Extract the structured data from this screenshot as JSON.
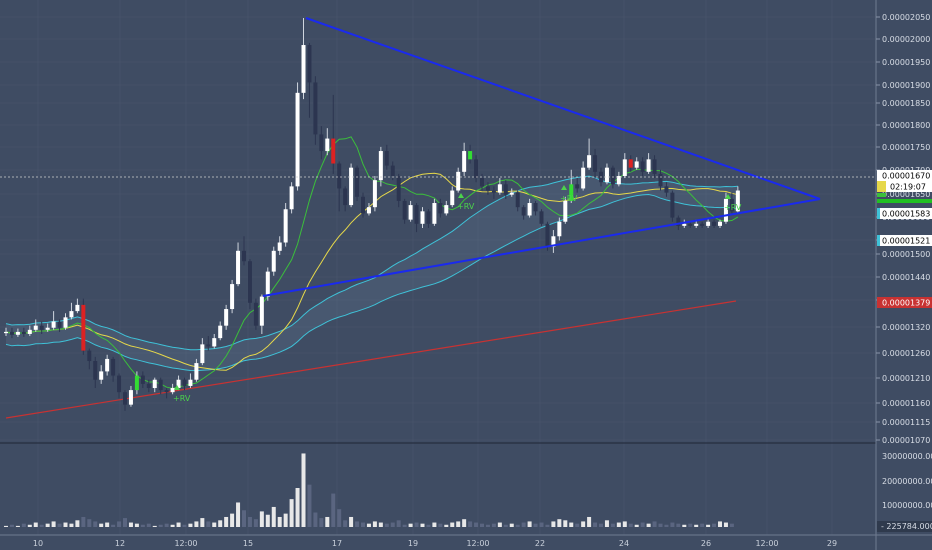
{
  "colors": {
    "background": "#3f4c63",
    "grid": "#4a576d",
    "candle_up": "#ffffff",
    "candle_down": "#2c3550",
    "candle_up_green": "#33dd33",
    "candle_down_red": "#dd2222",
    "trendline": "#1a2aee",
    "ma_green": "#3bbf3b",
    "ma_yellow": "#e6d84a",
    "ma_cyan": "#3fc2d8",
    "ma_red": "#c83232",
    "last_price_line": "#d0d0d0",
    "volume_up": "#e8e8e8",
    "volume_down": "#5a6580"
  },
  "chart_data": {
    "type": "candlestick",
    "title": "",
    "price_axis": {
      "ticks": [
        "0.00002050",
        "0.00002000",
        "0.00001950",
        "0.00001900",
        "0.00001850",
        "0.00001800",
        "0.00001750",
        "0.00001700",
        "0.00001650",
        "0.00001600",
        "0.00001550",
        "0.00001500",
        "0.00001440",
        "0.00001380",
        "0.00001320",
        "0.00001260",
        "0.00001210",
        "0.00001160",
        "0.00001115",
        "0.00001070"
      ]
    },
    "time_axis": {
      "labels": [
        "10",
        "12",
        "12:00",
        "15",
        "17",
        "19",
        "12:00",
        "22",
        "24",
        "26",
        "12:00",
        "29"
      ]
    },
    "price_labels": [
      {
        "value": "0.00001670",
        "role": "last-price"
      },
      {
        "value": "02:19:07",
        "role": "countdown"
      },
      {
        "value": "0.00001583",
        "role": "ma-cyan-1"
      },
      {
        "value": "0.00001521",
        "role": "ma-cyan-2"
      },
      {
        "value": "0.00001379",
        "role": "ma-red"
      }
    ],
    "volume_axis": {
      "ticks": [
        "30000000.0000",
        "20000000.0000",
        "10000000.0000"
      ],
      "last_value": "225784.0000"
    },
    "annotations": [
      "+RV",
      "+RV",
      "+RV",
      "+RV"
    ],
    "candles": [
      [
        1.327,
        1.33,
        1.34,
        1.32
      ],
      [
        1.33,
        1.323,
        1.34,
        1.315
      ],
      [
        1.323,
        1.33,
        1.338,
        1.318
      ],
      [
        1.33,
        1.325,
        1.34,
        1.318
      ],
      [
        1.325,
        1.335,
        1.345,
        1.32
      ],
      [
        1.335,
        1.345,
        1.36,
        1.33
      ],
      [
        1.345,
        1.335,
        1.355,
        1.325
      ],
      [
        1.335,
        1.34,
        1.35,
        1.33
      ],
      [
        1.34,
        1.355,
        1.38,
        1.335
      ],
      [
        1.355,
        1.34,
        1.36,
        1.33
      ],
      [
        1.34,
        1.365,
        1.375,
        1.335
      ],
      [
        1.365,
        1.38,
        1.4,
        1.36
      ],
      [
        1.38,
        1.395,
        1.41,
        1.375
      ],
      [
        1.395,
        1.285,
        1.41,
        1.275
      ],
      [
        1.285,
        1.26,
        1.29,
        1.24
      ],
      [
        1.26,
        1.215,
        1.27,
        1.195
      ],
      [
        1.215,
        1.235,
        1.25,
        1.205
      ],
      [
        1.235,
        1.265,
        1.275,
        1.225
      ],
      [
        1.265,
        1.225,
        1.27,
        1.21
      ],
      [
        1.225,
        1.185,
        1.23,
        1.17
      ],
      [
        1.185,
        1.155,
        1.19,
        1.14
      ],
      [
        1.155,
        1.19,
        1.2,
        1.15
      ],
      [
        1.19,
        1.225,
        1.235,
        1.18
      ],
      [
        1.225,
        1.205,
        1.235,
        1.195
      ],
      [
        1.205,
        1.195,
        1.215,
        1.185
      ],
      [
        1.195,
        1.215,
        1.22,
        1.185
      ],
      [
        1.215,
        1.19,
        1.22,
        1.18
      ],
      [
        1.19,
        1.185,
        1.195,
        1.17
      ],
      [
        1.185,
        1.195,
        1.205,
        1.18
      ],
      [
        1.195,
        1.215,
        1.225,
        1.19
      ],
      [
        1.215,
        1.2,
        1.22,
        1.19
      ],
      [
        1.2,
        1.215,
        1.23,
        1.195
      ],
      [
        1.215,
        1.255,
        1.265,
        1.21
      ],
      [
        1.255,
        1.3,
        1.315,
        1.25
      ],
      [
        1.3,
        1.295,
        1.32,
        1.285
      ],
      [
        1.295,
        1.315,
        1.325,
        1.29
      ],
      [
        1.315,
        1.345,
        1.355,
        1.31
      ],
      [
        1.345,
        1.385,
        1.395,
        1.335
      ],
      [
        1.385,
        1.445,
        1.455,
        1.375
      ],
      [
        1.445,
        1.525,
        1.545,
        1.44
      ],
      [
        1.525,
        1.5,
        1.56,
        1.49
      ],
      [
        1.5,
        1.4,
        1.505,
        1.385
      ],
      [
        1.4,
        1.345,
        1.41,
        1.335
      ],
      [
        1.345,
        1.415,
        1.42,
        1.325
      ],
      [
        1.415,
        1.475,
        1.485,
        1.405
      ],
      [
        1.475,
        1.525,
        1.535,
        1.465
      ],
      [
        1.525,
        1.545,
        1.56,
        1.515
      ],
      [
        1.545,
        1.625,
        1.64,
        1.535
      ],
      [
        1.625,
        1.68,
        1.69,
        1.615
      ],
      [
        1.68,
        1.905,
        1.93,
        1.67
      ],
      [
        1.905,
        2.02,
        2.085,
        1.89
      ],
      [
        2.02,
        1.93,
        2.025,
        1.845
      ],
      [
        1.93,
        1.805,
        1.945,
        1.78
      ],
      [
        1.805,
        1.765,
        1.825,
        1.745
      ],
      [
        1.765,
        1.795,
        1.82,
        1.755
      ],
      [
        1.795,
        1.735,
        1.9,
        1.71
      ],
      [
        1.735,
        1.675,
        1.74,
        1.62
      ],
      [
        1.675,
        1.635,
        1.68,
        1.62
      ],
      [
        1.635,
        1.725,
        1.735,
        1.63
      ],
      [
        1.725,
        1.655,
        1.73,
        1.645
      ],
      [
        1.655,
        1.615,
        1.665,
        1.605
      ],
      [
        1.615,
        1.63,
        1.64,
        1.61
      ],
      [
        1.63,
        1.695,
        1.705,
        1.62
      ],
      [
        1.695,
        1.765,
        1.775,
        1.68
      ],
      [
        1.765,
        1.73,
        1.78,
        1.72
      ],
      [
        1.73,
        1.705,
        1.74,
        1.695
      ],
      [
        1.705,
        1.645,
        1.71,
        1.63
      ],
      [
        1.645,
        1.6,
        1.65,
        1.59
      ],
      [
        1.6,
        1.635,
        1.645,
        1.595
      ],
      [
        1.635,
        1.59,
        1.64,
        1.57
      ],
      [
        1.59,
        1.62,
        1.63,
        1.58
      ],
      [
        1.62,
        1.59,
        1.625,
        1.58
      ],
      [
        1.59,
        1.64,
        1.65,
        1.585
      ],
      [
        1.64,
        1.615,
        1.65,
        1.605
      ],
      [
        1.615,
        1.635,
        1.645,
        1.61
      ],
      [
        1.635,
        1.67,
        1.68,
        1.63
      ],
      [
        1.67,
        1.715,
        1.725,
        1.665
      ],
      [
        1.715,
        1.765,
        1.785,
        1.705
      ],
      [
        1.765,
        1.745,
        1.78,
        1.735
      ],
      [
        1.745,
        1.7,
        1.755,
        1.69
      ],
      [
        1.7,
        1.68,
        1.71,
        1.67
      ],
      [
        1.68,
        1.67,
        1.69,
        1.66
      ],
      [
        1.67,
        1.665,
        1.68,
        1.65
      ],
      [
        1.665,
        1.685,
        1.7,
        1.66
      ],
      [
        1.685,
        1.66,
        1.695,
        1.65
      ],
      [
        1.66,
        1.665,
        1.675,
        1.655
      ],
      [
        1.665,
        1.63,
        1.67,
        1.62
      ],
      [
        1.63,
        1.61,
        1.635,
        1.6
      ],
      [
        1.61,
        1.64,
        1.65,
        1.605
      ],
      [
        1.64,
        1.62,
        1.645,
        1.61
      ],
      [
        1.62,
        1.59,
        1.625,
        1.585
      ],
      [
        1.59,
        1.535,
        1.595,
        1.525
      ],
      [
        1.535,
        1.56,
        1.575,
        1.52
      ],
      [
        1.56,
        1.595,
        1.605,
        1.55
      ],
      [
        1.595,
        1.645,
        1.655,
        1.59
      ],
      [
        1.645,
        1.685,
        1.72,
        1.64
      ],
      [
        1.685,
        1.675,
        1.7,
        1.665
      ],
      [
        1.675,
        1.725,
        1.74,
        1.67
      ],
      [
        1.725,
        1.755,
        1.795,
        1.72
      ],
      [
        1.755,
        1.715,
        1.77,
        1.7
      ],
      [
        1.715,
        1.69,
        1.725,
        1.68
      ],
      [
        1.69,
        1.725,
        1.735,
        1.685
      ],
      [
        1.725,
        1.685,
        1.73,
        1.675
      ],
      [
        1.685,
        1.705,
        1.715,
        1.68
      ],
      [
        1.705,
        1.745,
        1.76,
        1.7
      ],
      [
        1.745,
        1.725,
        1.755,
        1.715
      ],
      [
        1.725,
        1.74,
        1.75,
        1.72
      ],
      [
        1.74,
        1.715,
        1.75,
        1.705
      ],
      [
        1.715,
        1.745,
        1.76,
        1.71
      ],
      [
        1.745,
        1.71,
        1.755,
        1.7
      ],
      [
        1.71,
        1.68,
        1.72,
        1.67
      ],
      [
        1.68,
        1.665,
        1.69,
        1.655
      ],
      [
        1.665,
        1.605,
        1.67,
        1.595
      ],
      [
        1.605,
        1.585,
        1.61,
        1.575
      ],
      [
        1.585,
        1.59,
        1.6,
        1.58
      ],
      [
        1.59,
        1.585,
        1.595,
        1.58
      ],
      [
        1.585,
        1.59,
        1.6,
        1.58
      ],
      [
        1.59,
        1.585,
        1.595,
        1.58
      ],
      [
        1.585,
        1.595,
        1.605,
        1.58
      ],
      [
        1.595,
        1.585,
        1.6,
        1.58
      ],
      [
        1.585,
        1.595,
        1.6,
        1.58
      ],
      [
        1.595,
        1.65,
        1.665,
        1.59
      ],
      [
        1.65,
        1.62,
        1.665,
        1.61
      ],
      [
        1.62,
        1.67,
        1.68,
        1.615
      ]
    ],
    "volumes": [
      0.1,
      0.2,
      0.1,
      0.3,
      0.2,
      0.4,
      0.2,
      0.3,
      0.5,
      0.3,
      0.4,
      0.3,
      0.6,
      0.9,
      0.7,
      0.5,
      0.3,
      0.4,
      0.2,
      0.5,
      0.8,
      0.4,
      0.3,
      0.2,
      0.3,
      0.1,
      0.2,
      0.3,
      0.2,
      0.4,
      0.2,
      0.3,
      0.5,
      0.8,
      0.5,
      0.4,
      0.6,
      0.9,
      1.2,
      2.2,
      1.5,
      0.9,
      0.7,
      1.4,
      1.1,
      1.8,
      0.9,
      1.2,
      2.5,
      3.5,
      6.6,
      3.8,
      1.3,
      0.8,
      0.9,
      3.0,
      1.6,
      0.6,
      0.9,
      0.5,
      0.4,
      0.3,
      0.5,
      0.4,
      0.3,
      0.4,
      0.6,
      0.2,
      0.3,
      0.4,
      0.3,
      0.2,
      0.4,
      0.3,
      0.2,
      0.4,
      0.5,
      0.7,
      0.5,
      0.4,
      0.3,
      0.2,
      0.3,
      0.4,
      0.2,
      0.3,
      0.2,
      0.4,
      0.5,
      0.3,
      0.4,
      0.2,
      0.5,
      0.7,
      0.6,
      0.4,
      0.3,
      0.5,
      0.9,
      0.4,
      0.3,
      0.6,
      0.3,
      0.4,
      0.5,
      0.3,
      0.2,
      0.4,
      0.3,
      0.5,
      0.3,
      0.2,
      0.4,
      0.3,
      0.2,
      0.3,
      0.2,
      0.3,
      0.2,
      0.3,
      0.5,
      0.4,
      0.3
    ]
  }
}
